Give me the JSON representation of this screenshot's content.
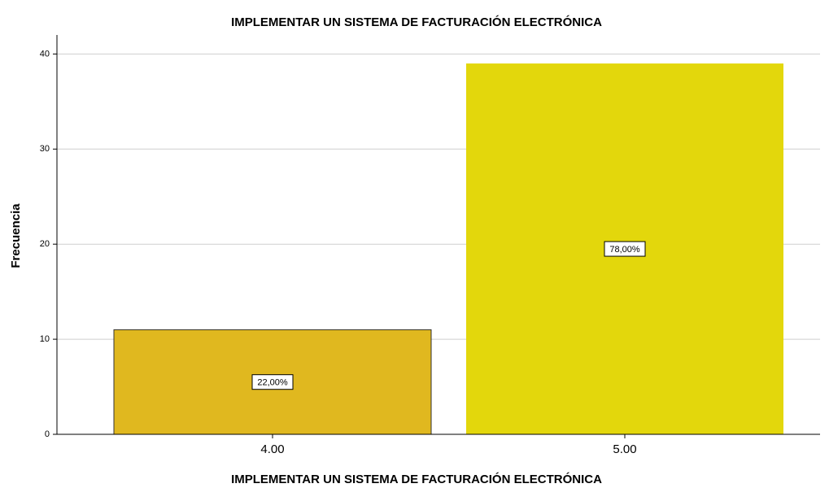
{
  "chart_data": {
    "type": "bar",
    "title": "IMPLEMENTAR UN SISTEMA DE FACTURACIÓN ELECTRÓNICA",
    "x_label": "IMPLEMENTAR UN SISTEMA DE FACTURACIÓN ELECTRÓNICA",
    "y_label": "Frecuencia",
    "categories": [
      "4.00",
      "5.00"
    ],
    "values": [
      11,
      39
    ],
    "data_labels": [
      "22,00%",
      "78,00%"
    ],
    "colors": [
      "#e0b81f",
      "#e3d70c"
    ],
    "ylim": [
      0,
      42
    ],
    "yticks": [
      0,
      10,
      20,
      30,
      40
    ],
    "grid": true
  }
}
